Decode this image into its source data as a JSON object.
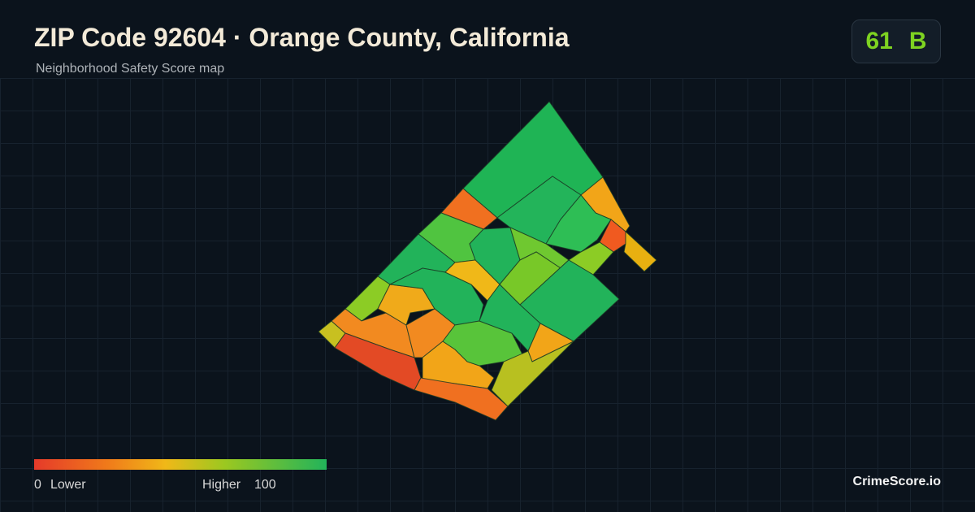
{
  "header": {
    "title": "ZIP Code 92604 · Orange County, California",
    "subtitle": "Neighborhood Safety Score map"
  },
  "score": {
    "value": "61",
    "grade": "B"
  },
  "legend": {
    "min": "0",
    "min_label": "Lower",
    "max_label": "Higher",
    "max": "100"
  },
  "brand": "CrimeScore.io"
}
